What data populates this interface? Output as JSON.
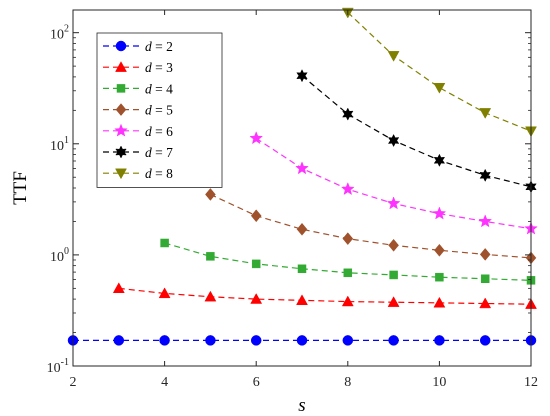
{
  "chart_data": {
    "type": "line",
    "xlabel": "s",
    "ylabel": "TTF",
    "xlim": [
      2,
      12
    ],
    "ylim": [
      0.1,
      160
    ],
    "yscale": "log",
    "xticks": [
      2,
      4,
      6,
      8,
      10,
      12
    ],
    "yticks": [
      {
        "value": 0.1,
        "base": "10",
        "exp": "-1"
      },
      {
        "value": 1,
        "base": "10",
        "exp": "0"
      },
      {
        "value": 10,
        "base": "10",
        "exp": "1"
      },
      {
        "value": 100,
        "base": "10",
        "exp": "2"
      }
    ],
    "grid": false,
    "legend_position": "top-left",
    "series": [
      {
        "name": "d = 2",
        "label_var": "d",
        "label_eq": " = 2",
        "color": "#0000ff",
        "marker": "circle",
        "x": [
          2,
          3,
          4,
          5,
          6,
          7,
          8,
          9,
          10,
          11,
          12
        ],
        "y": [
          0.17,
          0.17,
          0.17,
          0.17,
          0.17,
          0.17,
          0.17,
          0.17,
          0.17,
          0.17,
          0.17
        ]
      },
      {
        "name": "d = 3",
        "label_var": "d",
        "label_eq": " = 3",
        "color": "#ff0000",
        "marker": "triangle-up",
        "x": [
          3,
          4,
          5,
          6,
          7,
          8,
          9,
          10,
          11,
          12
        ],
        "y": [
          0.5,
          0.45,
          0.42,
          0.4,
          0.39,
          0.38,
          0.375,
          0.37,
          0.365,
          0.36
        ]
      },
      {
        "name": "d = 4",
        "label_var": "d",
        "label_eq": " = 4",
        "color": "#33aa33",
        "marker": "square",
        "x": [
          4,
          5,
          6,
          7,
          8,
          9,
          10,
          11,
          12
        ],
        "y": [
          1.28,
          0.97,
          0.83,
          0.75,
          0.69,
          0.66,
          0.63,
          0.61,
          0.59
        ]
      },
      {
        "name": "d = 5",
        "label_var": "d",
        "label_eq": " = 5",
        "color": "#a0522d",
        "marker": "diamond",
        "x": [
          5,
          6,
          7,
          8,
          9,
          10,
          11,
          12
        ],
        "y": [
          3.5,
          2.25,
          1.7,
          1.4,
          1.22,
          1.1,
          1.01,
          0.94
        ]
      },
      {
        "name": "d = 6",
        "label_var": "d",
        "label_eq": " = 6",
        "color": "#ff33ff",
        "marker": "star",
        "x": [
          6,
          7,
          8,
          9,
          10,
          11,
          12
        ],
        "y": [
          11.2,
          6.0,
          3.9,
          2.9,
          2.35,
          2.0,
          1.72
        ]
      },
      {
        "name": "d = 7",
        "label_var": "d",
        "label_eq": " = 7",
        "color": "#000000",
        "marker": "hexagram",
        "x": [
          7,
          8,
          9,
          10,
          11,
          12
        ],
        "y": [
          41,
          18.5,
          10.7,
          7.1,
          5.2,
          4.1
        ]
      },
      {
        "name": "d = 8",
        "label_var": "d",
        "label_eq": " = 8",
        "color": "#808000",
        "marker": "triangle-down",
        "x": [
          8,
          9,
          10,
          11,
          12
        ],
        "y": [
          152,
          62,
          32,
          19,
          13
        ]
      }
    ]
  }
}
